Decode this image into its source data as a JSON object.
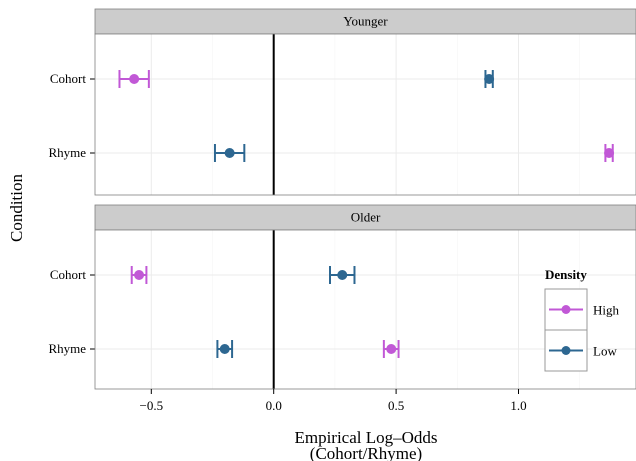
{
  "chart_data": {
    "type": "scatter",
    "xlabel_line1": "Empirical Log–Odds",
    "xlabel_line2": "(Cohort/Rhyme)",
    "ylabel": "Condition",
    "xlim": [
      -0.73,
      1.48
    ],
    "x_ticks": [
      -0.5,
      0.0,
      0.5,
      1.0
    ],
    "x_tick_labels": [
      "−0.5",
      "0.0",
      "0.5",
      "1.0"
    ],
    "categories": [
      "Cohort",
      "Rhyme"
    ],
    "reference_line_x": 0,
    "grid": true,
    "legend": {
      "title": "Density",
      "placement": "right",
      "entries": [
        {
          "name": "High",
          "color": "#c158d6"
        },
        {
          "name": "Low",
          "color": "#2d6791"
        }
      ]
    },
    "panels": [
      {
        "title": "Younger",
        "points": [
          {
            "category": "Cohort",
            "series": "High",
            "value": -0.57,
            "lower": -0.63,
            "upper": -0.51
          },
          {
            "category": "Cohort",
            "series": "Low",
            "value": 0.88,
            "lower": 0.865,
            "upper": 0.895
          },
          {
            "category": "Rhyme",
            "series": "High",
            "value": 1.37,
            "lower": 1.355,
            "upper": 1.385
          },
          {
            "category": "Rhyme",
            "series": "Low",
            "value": -0.18,
            "lower": -0.24,
            "upper": -0.12
          }
        ]
      },
      {
        "title": "Older",
        "points": [
          {
            "category": "Cohort",
            "series": "High",
            "value": -0.55,
            "lower": -0.58,
            "upper": -0.52
          },
          {
            "category": "Cohort",
            "series": "Low",
            "value": 0.28,
            "lower": 0.23,
            "upper": 0.33
          },
          {
            "category": "Rhyme",
            "series": "High",
            "value": 0.48,
            "lower": 0.45,
            "upper": 0.51
          },
          {
            "category": "Rhyme",
            "series": "Low",
            "value": -0.2,
            "lower": -0.23,
            "upper": -0.17
          }
        ]
      }
    ]
  }
}
